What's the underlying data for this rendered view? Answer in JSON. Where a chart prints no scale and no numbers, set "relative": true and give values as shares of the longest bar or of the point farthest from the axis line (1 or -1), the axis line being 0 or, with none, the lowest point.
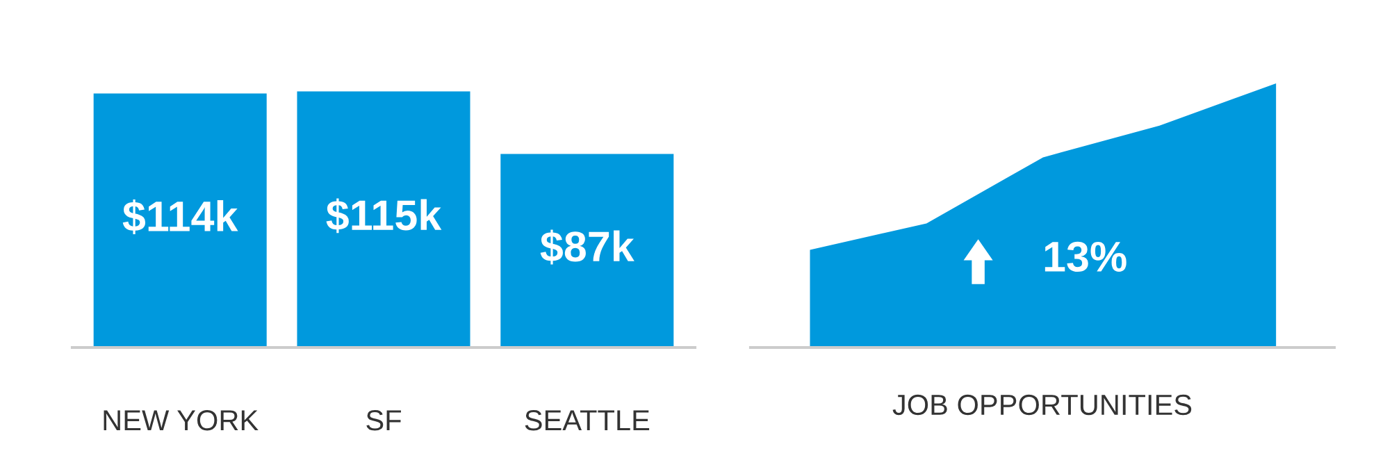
{
  "chart_data": [
    {
      "type": "bar",
      "categories": [
        "NEW YORK",
        "SF",
        "SEATTLE"
      ],
      "values": [
        114,
        115,
        87
      ],
      "value_labels": [
        "$114k",
        "$115k",
        "$87k"
      ],
      "color": "#0099dd",
      "tick_labels": "x"
    },
    {
      "type": "area",
      "categories": [
        null,
        null,
        null,
        null,
        null
      ],
      "values": [
        0.37,
        0.47,
        0.72,
        0.84,
        1
      ],
      "relative": true,
      "color": "#0099dd",
      "xlabel": "JOB OPPORTUNITIES",
      "annotations": [
        "13%"
      ],
      "tick_labels": false
    }
  ]
}
